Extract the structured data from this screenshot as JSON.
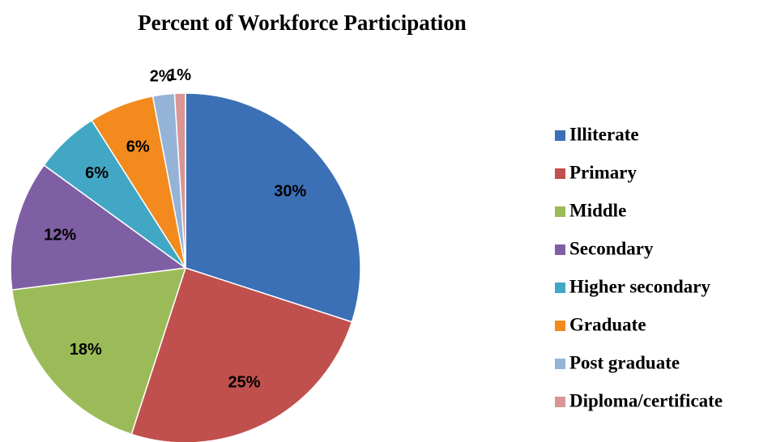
{
  "chart_data": {
    "type": "pie",
    "title": "Percent of Workforce Participation",
    "categories": [
      "Illiterate",
      "Primary",
      "Middle",
      "Secondary",
      "Higher secondary",
      "Graduate",
      "Post graduate",
      "Diploma/certificate"
    ],
    "values": [
      30,
      25,
      18,
      12,
      6,
      6,
      2,
      1
    ],
    "value_labels": [
      "30%",
      "25%",
      "18%",
      "12%",
      "6%",
      "6%",
      "2%",
      "1%"
    ],
    "colors": [
      "#3b6fb6",
      "#c0504d",
      "#9bbb59",
      "#7f5fa3",
      "#41a7c4",
      "#f28a1e",
      "#95b3d7",
      "#d99694"
    ],
    "legend": "right"
  }
}
